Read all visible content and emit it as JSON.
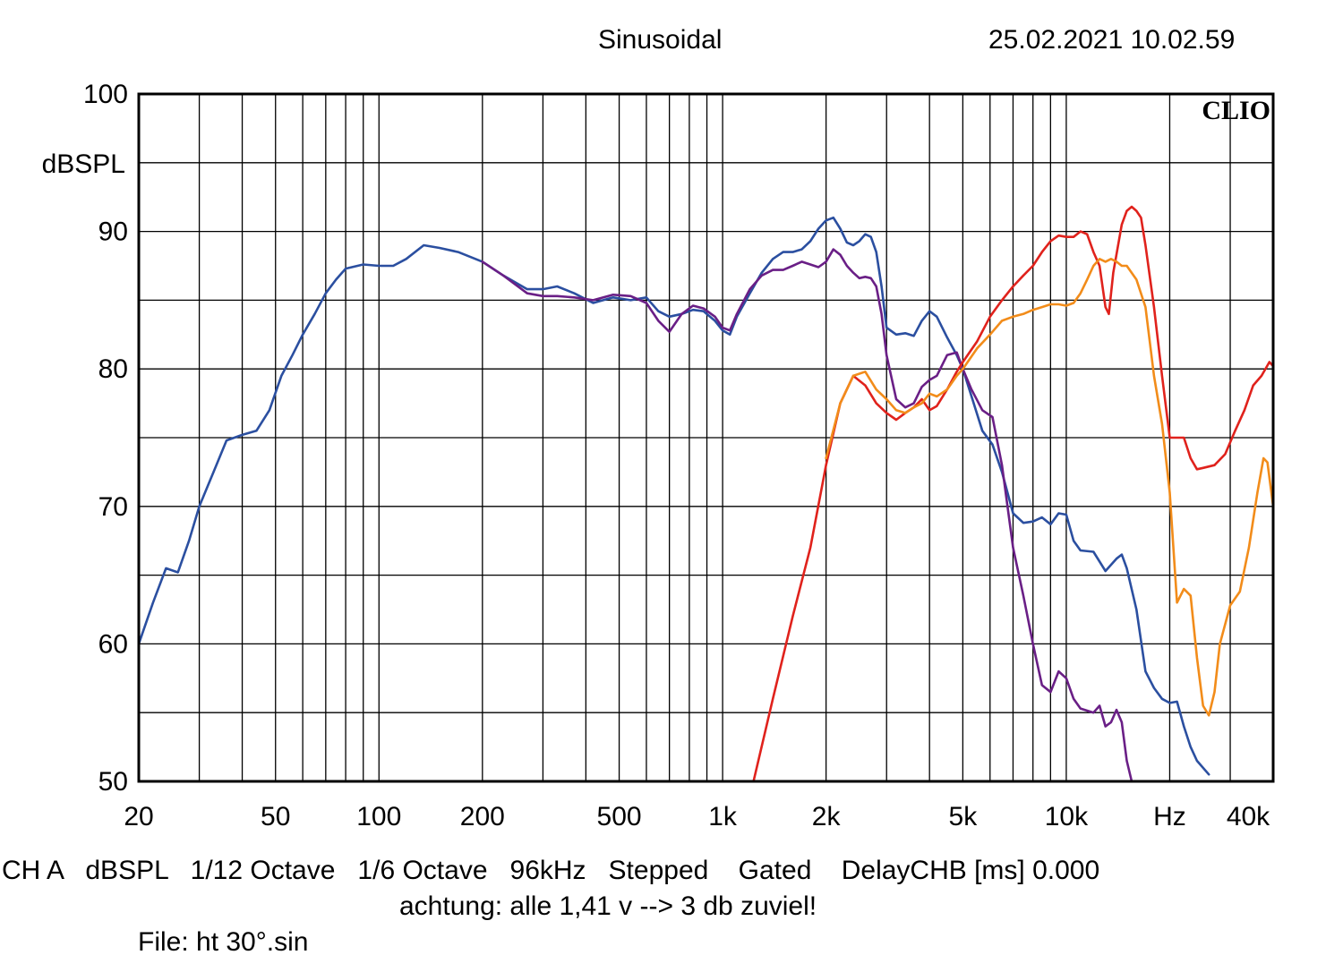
{
  "header": {
    "title": "Sinusoidal",
    "datetime": "25.02.2021 10.02.59",
    "brand": "CLIO"
  },
  "footer": {
    "line1": "CH A   dBSPL   1/12 Octave   1/6 Octave   96kHz   Stepped    Gated    DelayCHB [ms] 0.000",
    "line2": "achtung: alle 1,41 v --> 3 db zuviel!",
    "line3": "File: ht 30°.sin"
  },
  "colors": {
    "background": "#ffffff",
    "grid": "#000000",
    "blue": "#2b4fa0",
    "purple": "#6a1f86",
    "red": "#e0221c",
    "orange": "#f28c1a"
  },
  "chart_data": {
    "type": "line",
    "x_scale": "log",
    "xlim": [
      20,
      40000
    ],
    "ylim": [
      50,
      100
    ],
    "grid": true,
    "ylabel": "dBSPL",
    "y_ticks": [
      {
        "value": 100,
        "label": "100"
      },
      {
        "value": 90,
        "label": "90"
      },
      {
        "value": 80,
        "label": "80"
      },
      {
        "value": 70,
        "label": "70"
      },
      {
        "value": 60,
        "label": "60"
      },
      {
        "value": 50,
        "label": "50"
      }
    ],
    "x_ticks": [
      {
        "value": 20,
        "label": "20"
      },
      {
        "value": 50,
        "label": "50"
      },
      {
        "value": 100,
        "label": "100"
      },
      {
        "value": 200,
        "label": "200"
      },
      {
        "value": 500,
        "label": "500"
      },
      {
        "value": 1000,
        "label": "1k"
      },
      {
        "value": 2000,
        "label": "2k"
      },
      {
        "value": 5000,
        "label": "5k"
      },
      {
        "value": 10000,
        "label": "10k"
      },
      {
        "value": 20000,
        "label": "Hz"
      },
      {
        "value": 40000,
        "label": "40k"
      }
    ],
    "series": [
      {
        "color": "#2b4fa0",
        "points": [
          [
            20,
            60
          ],
          [
            22,
            63
          ],
          [
            24,
            65.5
          ],
          [
            26,
            65.2
          ],
          [
            28,
            67.5
          ],
          [
            30,
            70
          ],
          [
            33,
            72.5
          ],
          [
            36,
            74.8
          ],
          [
            40,
            75.2
          ],
          [
            44,
            75.5
          ],
          [
            48,
            77
          ],
          [
            52,
            79.5
          ],
          [
            56,
            81
          ],
          [
            60,
            82.5
          ],
          [
            65,
            84
          ],
          [
            70,
            85.5
          ],
          [
            75,
            86.5
          ],
          [
            80,
            87.3
          ],
          [
            90,
            87.6
          ],
          [
            100,
            87.5
          ],
          [
            110,
            87.5
          ],
          [
            120,
            88
          ],
          [
            135,
            89
          ],
          [
            150,
            88.8
          ],
          [
            170,
            88.5
          ],
          [
            200,
            87.8
          ],
          [
            230,
            86.8
          ],
          [
            270,
            85.8
          ],
          [
            300,
            85.8
          ],
          [
            330,
            86
          ],
          [
            370,
            85.5
          ],
          [
            420,
            84.8
          ],
          [
            480,
            85.2
          ],
          [
            540,
            85
          ],
          [
            600,
            85.2
          ],
          [
            650,
            84.2
          ],
          [
            700,
            83.8
          ],
          [
            760,
            84
          ],
          [
            820,
            84.3
          ],
          [
            880,
            84.2
          ],
          [
            950,
            83.5
          ],
          [
            1000,
            82.8
          ],
          [
            1050,
            82.5
          ],
          [
            1100,
            83.8
          ],
          [
            1200,
            85.5
          ],
          [
            1300,
            87
          ],
          [
            1400,
            88
          ],
          [
            1500,
            88.5
          ],
          [
            1600,
            88.5
          ],
          [
            1700,
            88.7
          ],
          [
            1800,
            89.3
          ],
          [
            1900,
            90.2
          ],
          [
            2000,
            90.8
          ],
          [
            2100,
            91
          ],
          [
            2200,
            90.2
          ],
          [
            2300,
            89.2
          ],
          [
            2400,
            89
          ],
          [
            2500,
            89.3
          ],
          [
            2600,
            89.8
          ],
          [
            2700,
            89.6
          ],
          [
            2800,
            88.5
          ],
          [
            2900,
            86
          ],
          [
            3000,
            83
          ],
          [
            3200,
            82.5
          ],
          [
            3400,
            82.6
          ],
          [
            3600,
            82.4
          ],
          [
            3800,
            83.5
          ],
          [
            4000,
            84.2
          ],
          [
            4200,
            83.8
          ],
          [
            4500,
            82.3
          ],
          [
            4800,
            81
          ],
          [
            5000,
            80
          ],
          [
            5300,
            78
          ],
          [
            5700,
            75.5
          ],
          [
            6100,
            74.5
          ],
          [
            6500,
            72.5
          ],
          [
            7000,
            69.5
          ],
          [
            7500,
            68.8
          ],
          [
            8000,
            68.9
          ],
          [
            8500,
            69.2
          ],
          [
            9000,
            68.7
          ],
          [
            9500,
            69.5
          ],
          [
            10000,
            69.4
          ],
          [
            10500,
            67.5
          ],
          [
            11000,
            66.8
          ],
          [
            12000,
            66.7
          ],
          [
            13000,
            65.3
          ],
          [
            14000,
            66.2
          ],
          [
            14500,
            66.5
          ],
          [
            15000,
            65.5
          ],
          [
            16000,
            62.5
          ],
          [
            17000,
            58
          ],
          [
            18000,
            56.8
          ],
          [
            19000,
            56
          ],
          [
            20000,
            55.7
          ],
          [
            21000,
            55.8
          ],
          [
            22000,
            54
          ],
          [
            23000,
            52.5
          ],
          [
            24000,
            51.5
          ],
          [
            26000,
            50.5
          ]
        ]
      },
      {
        "color": "#6a1f86",
        "points": [
          [
            200,
            87.8
          ],
          [
            230,
            86.8
          ],
          [
            270,
            85.5
          ],
          [
            300,
            85.3
          ],
          [
            330,
            85.3
          ],
          [
            370,
            85.2
          ],
          [
            420,
            85
          ],
          [
            480,
            85.4
          ],
          [
            540,
            85.3
          ],
          [
            600,
            84.8
          ],
          [
            650,
            83.5
          ],
          [
            700,
            82.7
          ],
          [
            760,
            84
          ],
          [
            820,
            84.6
          ],
          [
            880,
            84.4
          ],
          [
            950,
            83.8
          ],
          [
            1000,
            83
          ],
          [
            1050,
            82.8
          ],
          [
            1100,
            84
          ],
          [
            1200,
            85.8
          ],
          [
            1300,
            86.8
          ],
          [
            1400,
            87.2
          ],
          [
            1500,
            87.2
          ],
          [
            1600,
            87.5
          ],
          [
            1700,
            87.8
          ],
          [
            1800,
            87.6
          ],
          [
            1900,
            87.4
          ],
          [
            2000,
            87.8
          ],
          [
            2100,
            88.7
          ],
          [
            2200,
            88.3
          ],
          [
            2300,
            87.5
          ],
          [
            2400,
            87
          ],
          [
            2500,
            86.6
          ],
          [
            2600,
            86.7
          ],
          [
            2700,
            86.6
          ],
          [
            2800,
            86
          ],
          [
            2900,
            84
          ],
          [
            3000,
            81
          ],
          [
            3200,
            77.8
          ],
          [
            3400,
            77.2
          ],
          [
            3600,
            77.5
          ],
          [
            3800,
            78.7
          ],
          [
            4000,
            79.2
          ],
          [
            4200,
            79.5
          ],
          [
            4500,
            81
          ],
          [
            4800,
            81.2
          ],
          [
            5000,
            80
          ],
          [
            5300,
            78.5
          ],
          [
            5700,
            77
          ],
          [
            6100,
            76.5
          ],
          [
            6500,
            73
          ],
          [
            7000,
            67
          ],
          [
            7500,
            63.5
          ],
          [
            8000,
            60
          ],
          [
            8500,
            57
          ],
          [
            9000,
            56.5
          ],
          [
            9500,
            58
          ],
          [
            10000,
            57.5
          ],
          [
            10500,
            56
          ],
          [
            11000,
            55.3
          ],
          [
            12000,
            55
          ],
          [
            12500,
            55.5
          ],
          [
            13000,
            54
          ],
          [
            13500,
            54.3
          ],
          [
            14000,
            55.2
          ],
          [
            14500,
            54.3
          ],
          [
            15000,
            51.5
          ],
          [
            15500,
            50
          ]
        ]
      },
      {
        "color": "#e0221c",
        "points": [
          [
            1230,
            50
          ],
          [
            1400,
            56
          ],
          [
            1600,
            62
          ],
          [
            1800,
            67
          ],
          [
            2000,
            73
          ],
          [
            2200,
            77.5
          ],
          [
            2400,
            79.5
          ],
          [
            2600,
            78.8
          ],
          [
            2800,
            77.5
          ],
          [
            3000,
            76.8
          ],
          [
            3200,
            76.3
          ],
          [
            3400,
            76.8
          ],
          [
            3600,
            77.2
          ],
          [
            3800,
            77.8
          ],
          [
            4000,
            77
          ],
          [
            4200,
            77.3
          ],
          [
            4500,
            78.5
          ],
          [
            4800,
            79.8
          ],
          [
            5000,
            80.5
          ],
          [
            5500,
            82
          ],
          [
            6000,
            83.8
          ],
          [
            6500,
            85
          ],
          [
            7000,
            86
          ],
          [
            7500,
            86.8
          ],
          [
            8000,
            87.5
          ],
          [
            8500,
            88.5
          ],
          [
            9000,
            89.3
          ],
          [
            9500,
            89.7
          ],
          [
            10000,
            89.6
          ],
          [
            10500,
            89.6
          ],
          [
            11000,
            90
          ],
          [
            11500,
            89.8
          ],
          [
            12000,
            88.5
          ],
          [
            12500,
            87.5
          ],
          [
            13000,
            84.5
          ],
          [
            13300,
            84
          ],
          [
            13700,
            87
          ],
          [
            14500,
            90.5
          ],
          [
            15000,
            91.5
          ],
          [
            15500,
            91.8
          ],
          [
            16000,
            91.5
          ],
          [
            16500,
            91
          ],
          [
            17000,
            89
          ],
          [
            18000,
            84.5
          ],
          [
            19000,
            79.5
          ],
          [
            20000,
            75
          ],
          [
            21000,
            75
          ],
          [
            22000,
            75
          ],
          [
            23000,
            73.5
          ],
          [
            24000,
            72.7
          ],
          [
            25000,
            72.8
          ],
          [
            27000,
            73
          ],
          [
            29000,
            73.8
          ],
          [
            31000,
            75.5
          ],
          [
            33000,
            77
          ],
          [
            35000,
            78.8
          ],
          [
            37000,
            79.5
          ],
          [
            39000,
            80.5
          ],
          [
            40000,
            80.2
          ],
          [
            41000,
            79.5
          ],
          [
            42000,
            76.5
          ]
        ]
      },
      {
        "color": "#f28c1a",
        "points": [
          [
            2000,
            73.5
          ],
          [
            2200,
            77.5
          ],
          [
            2400,
            79.5
          ],
          [
            2600,
            79.8
          ],
          [
            2800,
            78.5
          ],
          [
            3000,
            77.8
          ],
          [
            3200,
            77
          ],
          [
            3400,
            76.8
          ],
          [
            3600,
            77.2
          ],
          [
            3800,
            77.5
          ],
          [
            4000,
            78.2
          ],
          [
            4200,
            78
          ],
          [
            4500,
            78.5
          ],
          [
            4800,
            79.5
          ],
          [
            5000,
            80
          ],
          [
            5500,
            81.5
          ],
          [
            6000,
            82.5
          ],
          [
            6500,
            83.5
          ],
          [
            7000,
            83.8
          ],
          [
            7500,
            84
          ],
          [
            8000,
            84.3
          ],
          [
            8500,
            84.5
          ],
          [
            9000,
            84.7
          ],
          [
            9500,
            84.7
          ],
          [
            10000,
            84.6
          ],
          [
            10500,
            84.8
          ],
          [
            11000,
            85.5
          ],
          [
            11500,
            86.5
          ],
          [
            12000,
            87.5
          ],
          [
            12500,
            88
          ],
          [
            13000,
            87.8
          ],
          [
            13500,
            88
          ],
          [
            14000,
            87.8
          ],
          [
            14500,
            87.5
          ],
          [
            15000,
            87.5
          ],
          [
            16000,
            86.5
          ],
          [
            17000,
            84.5
          ],
          [
            18000,
            79.5
          ],
          [
            19000,
            76
          ],
          [
            20000,
            71
          ],
          [
            21000,
            63
          ],
          [
            22000,
            64
          ],
          [
            23000,
            63.5
          ],
          [
            24000,
            59
          ],
          [
            25000,
            55.5
          ],
          [
            26000,
            54.8
          ],
          [
            27000,
            56.5
          ],
          [
            28000,
            60
          ],
          [
            30000,
            62.8
          ],
          [
            32000,
            63.8
          ],
          [
            34000,
            67
          ],
          [
            36000,
            71
          ],
          [
            37500,
            73.5
          ],
          [
            38500,
            73.2
          ],
          [
            40000,
            70
          ],
          [
            41000,
            68
          ],
          [
            42000,
            69
          ]
        ]
      }
    ]
  }
}
